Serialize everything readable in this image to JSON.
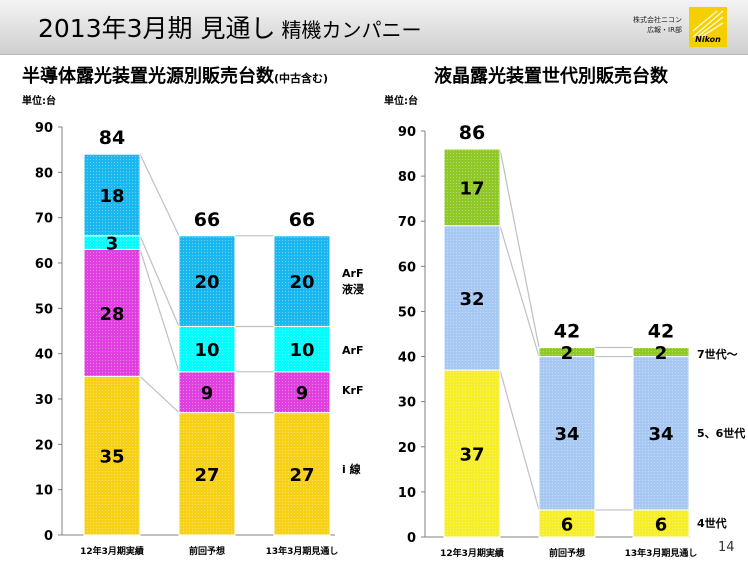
{
  "header": {
    "title": "2013年3月期 見通し",
    "subtitle": "精機カンパニー",
    "company_lines": [
      "株式会社ニコン",
      "広報・IR部"
    ],
    "logo_text": "Nikon",
    "brand_color": "#f5d000"
  },
  "page_number": "14",
  "chart_data": [
    {
      "type": "bar",
      "stacked": true,
      "title": "半導体露光装置光源別販売台数",
      "title_note": "(中古含む)",
      "unit_label": "単位:台",
      "ylim": [
        0,
        90
      ],
      "yticks": [
        0,
        10,
        20,
        30,
        40,
        50,
        60,
        70,
        80,
        90
      ],
      "categories": [
        "12年3月期実績",
        "前回予想",
        "13年3月期見通し"
      ],
      "totals": [
        84,
        66,
        66
      ],
      "series": [
        {
          "name": "i 線",
          "values": [
            35,
            27,
            27
          ],
          "color": "#f7d117"
        },
        {
          "name": "KrF",
          "values": [
            28,
            9,
            9
          ],
          "color": "#e040e0"
        },
        {
          "name": "ArF",
          "values": [
            3,
            10,
            10
          ],
          "color": "#00ffff"
        },
        {
          "name": "ArF\n液浸",
          "values": [
            18,
            20,
            20
          ],
          "color": "#1ab8ee"
        }
      ]
    },
    {
      "type": "bar",
      "stacked": true,
      "title": "液晶露光装置世代別販売台数",
      "unit_label": "単位:台",
      "ylim": [
        0,
        90
      ],
      "yticks": [
        0,
        10,
        20,
        30,
        40,
        50,
        60,
        70,
        80,
        90
      ],
      "categories": [
        "12年3月期実績",
        "前回予想",
        "13年3月期見通し"
      ],
      "totals": [
        86,
        42,
        42
      ],
      "series": [
        {
          "name": "4世代",
          "values": [
            37,
            6,
            6
          ],
          "color": "#f7ee2a"
        },
        {
          "name": "5、6世代",
          "values": [
            32,
            34,
            34
          ],
          "color": "#a8c8f4"
        },
        {
          "name": "7世代～",
          "values": [
            17,
            2,
            2
          ],
          "color": "#90c828"
        }
      ]
    }
  ]
}
